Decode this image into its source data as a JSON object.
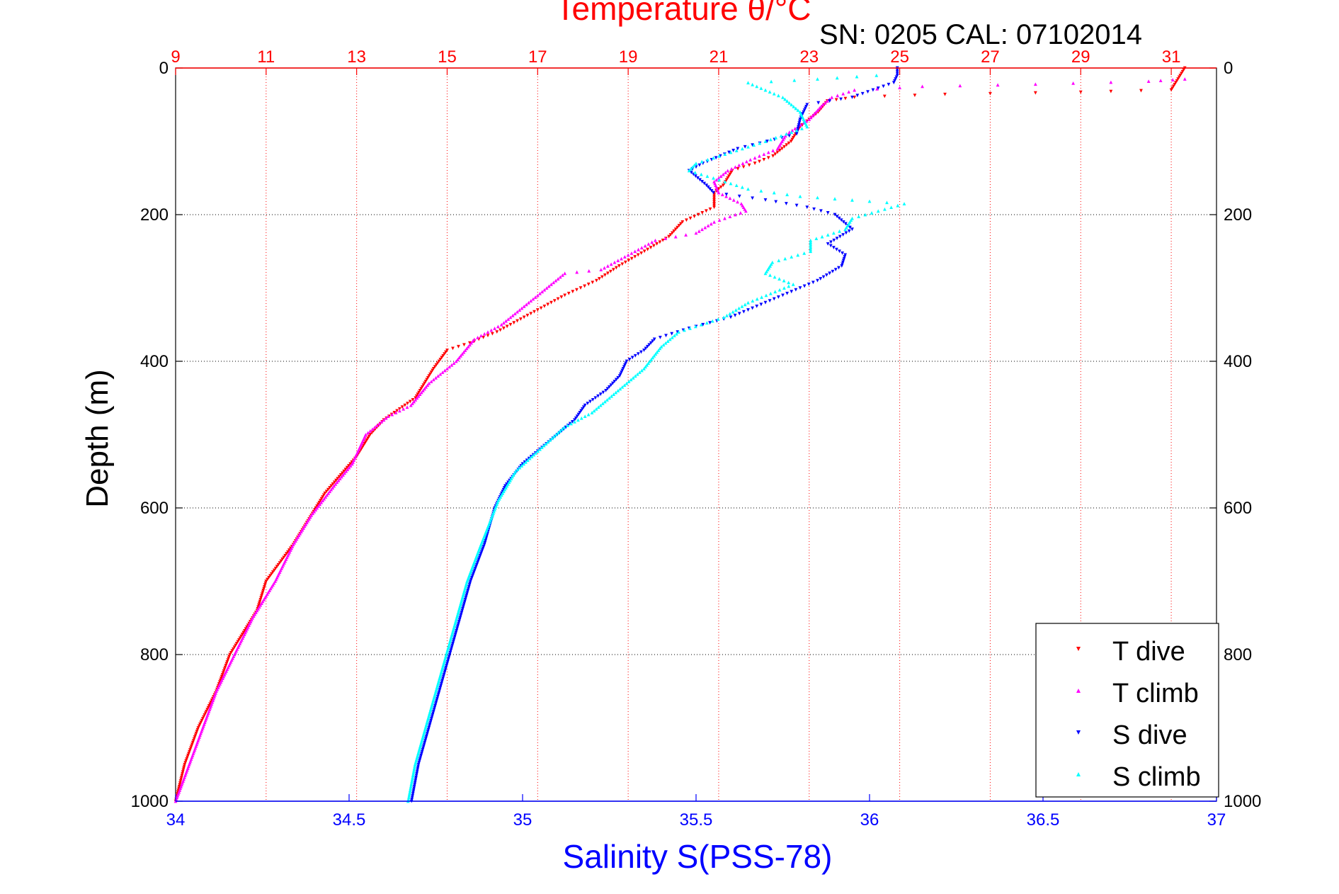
{
  "chart_data": {
    "type": "scatter",
    "title": "Temperature θ/°C",
    "subtitle": "SN: 0205  CAL: 07102014",
    "xlabel": "Salinity S(PSS-78)",
    "ylabel": "Depth (m)",
    "xlim": [
      34,
      37
    ],
    "x2lim": [
      9,
      32
    ],
    "ylim": [
      0,
      1000
    ],
    "y_reversed": true,
    "grid": true,
    "legend_position": "bottom-right",
    "x_ticks": [
      "34",
      "34.5",
      "35",
      "35.5",
      "36",
      "36.5",
      "37"
    ],
    "x2_ticks": [
      "9",
      "11",
      "13",
      "15",
      "17",
      "19",
      "21",
      "23",
      "25",
      "27",
      "29",
      "31"
    ],
    "y_ticks": [
      "0",
      "200",
      "400",
      "600",
      "800",
      "1000"
    ],
    "colors": {
      "T_dive": "#ff0000",
      "T_climb": "#ff00ff",
      "S_dive": "#0000ff",
      "S_climb": "#00ffff",
      "temp_axis": "#ff0000",
      "sal_axis": "#0000ff"
    },
    "series": [
      {
        "name": "T dive",
        "axis": "temperature",
        "marker": "triangle-down",
        "points": [
          [
            31.3,
            0
          ],
          [
            31.2,
            10
          ],
          [
            31.0,
            30
          ],
          [
            29.0,
            33
          ],
          [
            26.0,
            36
          ],
          [
            24.0,
            40
          ],
          [
            23.4,
            45
          ],
          [
            23.2,
            60
          ],
          [
            22.8,
            80
          ],
          [
            22.6,
            100
          ],
          [
            22.2,
            120
          ],
          [
            21.8,
            130
          ],
          [
            21.3,
            140
          ],
          [
            21.1,
            160
          ],
          [
            20.9,
            170
          ],
          [
            20.9,
            190
          ],
          [
            20.2,
            210
          ],
          [
            19.9,
            230
          ],
          [
            19.5,
            245
          ],
          [
            18.8,
            270
          ],
          [
            18.3,
            290
          ],
          [
            17.6,
            310
          ],
          [
            17.0,
            330
          ],
          [
            16.1,
            360
          ],
          [
            15.5,
            375
          ],
          [
            15.0,
            385
          ],
          [
            14.7,
            410
          ],
          [
            14.3,
            450
          ],
          [
            13.6,
            480
          ],
          [
            13.3,
            500
          ],
          [
            13.0,
            530
          ],
          [
            12.3,
            580
          ],
          [
            12.0,
            610
          ],
          [
            11.6,
            650
          ],
          [
            11.0,
            700
          ],
          [
            10.8,
            740
          ],
          [
            10.2,
            800
          ],
          [
            9.9,
            850
          ],
          [
            9.5,
            900
          ],
          [
            9.2,
            950
          ],
          [
            9.0,
            1000
          ]
        ]
      },
      {
        "name": "T climb",
        "axis": "temperature",
        "marker": "triangle-up",
        "points": [
          [
            31.3,
            15
          ],
          [
            30.5,
            18
          ],
          [
            28.0,
            22
          ],
          [
            25.5,
            25
          ],
          [
            24.0,
            30
          ],
          [
            23.5,
            40
          ],
          [
            23.3,
            50
          ],
          [
            23.0,
            70
          ],
          [
            22.5,
            90
          ],
          [
            22.3,
            110
          ],
          [
            21.7,
            125
          ],
          [
            21.2,
            140
          ],
          [
            20.9,
            155
          ],
          [
            21.0,
            170
          ],
          [
            21.5,
            185
          ],
          [
            21.6,
            195
          ],
          [
            20.9,
            210
          ],
          [
            20.5,
            225
          ],
          [
            19.6,
            235
          ],
          [
            19.0,
            255
          ],
          [
            18.4,
            275
          ],
          [
            17.6,
            280
          ],
          [
            16.8,
            320
          ],
          [
            16.2,
            350
          ],
          [
            15.6,
            370
          ],
          [
            15.2,
            400
          ],
          [
            14.6,
            430
          ],
          [
            14.2,
            460
          ],
          [
            13.7,
            475
          ],
          [
            13.2,
            500
          ],
          [
            12.9,
            540
          ],
          [
            12.5,
            570
          ],
          [
            12.0,
            610
          ],
          [
            11.6,
            650
          ],
          [
            11.2,
            700
          ],
          [
            10.7,
            750
          ],
          [
            10.3,
            800
          ],
          [
            9.9,
            850
          ],
          [
            9.6,
            900
          ],
          [
            9.3,
            950
          ],
          [
            9.0,
            1000
          ]
        ]
      },
      {
        "name": "S dive",
        "axis": "salinity",
        "marker": "triangle-down",
        "points": [
          [
            36.08,
            0
          ],
          [
            36.08,
            10
          ],
          [
            36.07,
            20
          ],
          [
            35.95,
            40
          ],
          [
            35.82,
            50
          ],
          [
            35.8,
            70
          ],
          [
            35.79,
            90
          ],
          [
            35.62,
            110
          ],
          [
            35.52,
            130
          ],
          [
            35.48,
            140
          ],
          [
            35.53,
            160
          ],
          [
            35.55,
            170
          ],
          [
            35.7,
            180
          ],
          [
            35.82,
            190
          ],
          [
            35.9,
            200
          ],
          [
            35.95,
            220
          ],
          [
            35.88,
            240
          ],
          [
            35.93,
            255
          ],
          [
            35.92,
            270
          ],
          [
            35.85,
            290
          ],
          [
            35.75,
            310
          ],
          [
            35.6,
            340
          ],
          [
            35.48,
            355
          ],
          [
            35.38,
            370
          ],
          [
            35.35,
            385
          ],
          [
            35.3,
            400
          ],
          [
            35.28,
            420
          ],
          [
            35.24,
            440
          ],
          [
            35.18,
            460
          ],
          [
            35.15,
            480
          ],
          [
            35.1,
            500
          ],
          [
            35.05,
            520
          ],
          [
            35.0,
            540
          ],
          [
            34.95,
            570
          ],
          [
            34.92,
            600
          ],
          [
            34.89,
            650
          ],
          [
            34.85,
            700
          ],
          [
            34.82,
            750
          ],
          [
            34.79,
            800
          ],
          [
            34.76,
            850
          ],
          [
            34.73,
            900
          ],
          [
            34.7,
            950
          ],
          [
            34.68,
            1000
          ]
        ]
      },
      {
        "name": "S climb",
        "axis": "salinity",
        "marker": "triangle-up",
        "points": [
          [
            36.02,
            10
          ],
          [
            35.85,
            15
          ],
          [
            35.65,
            20
          ],
          [
            35.75,
            40
          ],
          [
            35.8,
            60
          ],
          [
            35.82,
            80
          ],
          [
            35.7,
            100
          ],
          [
            35.6,
            115
          ],
          [
            35.5,
            130
          ],
          [
            35.48,
            140
          ],
          [
            35.55,
            150
          ],
          [
            35.65,
            165
          ],
          [
            35.8,
            175
          ],
          [
            35.95,
            180
          ],
          [
            36.1,
            185
          ],
          [
            35.95,
            205
          ],
          [
            35.93,
            220
          ],
          [
            35.83,
            235
          ],
          [
            35.83,
            250
          ],
          [
            35.72,
            265
          ],
          [
            35.7,
            280
          ],
          [
            35.78,
            295
          ],
          [
            35.65,
            320
          ],
          [
            35.58,
            340
          ],
          [
            35.45,
            360
          ],
          [
            35.4,
            380
          ],
          [
            35.35,
            410
          ],
          [
            35.3,
            430
          ],
          [
            35.25,
            450
          ],
          [
            35.2,
            470
          ],
          [
            35.12,
            490
          ],
          [
            35.05,
            520
          ],
          [
            34.98,
            550
          ],
          [
            34.93,
            590
          ],
          [
            34.88,
            650
          ],
          [
            34.84,
            700
          ],
          [
            34.81,
            750
          ],
          [
            34.78,
            800
          ],
          [
            34.75,
            850
          ],
          [
            34.72,
            900
          ],
          [
            34.69,
            950
          ],
          [
            34.67,
            1000
          ]
        ]
      }
    ],
    "legend": [
      {
        "label": "T dive",
        "color": "#ff0000",
        "marker": "triangle-down"
      },
      {
        "label": "T climb",
        "color": "#ff00ff",
        "marker": "triangle-up"
      },
      {
        "label": "S dive",
        "color": "#0000ff",
        "marker": "triangle-down"
      },
      {
        "label": "S climb",
        "color": "#00ffff",
        "marker": "triangle-up"
      }
    ]
  }
}
